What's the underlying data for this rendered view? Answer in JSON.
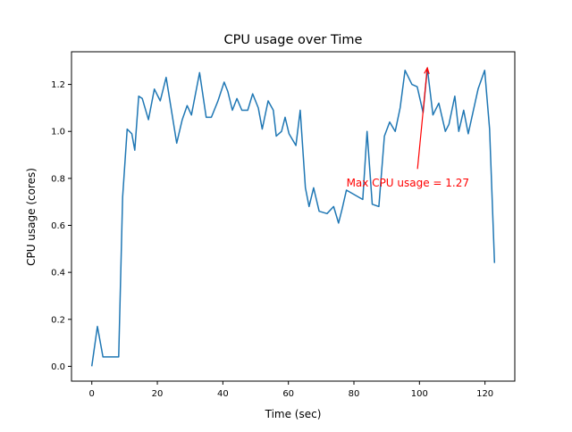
{
  "chart_data": {
    "type": "line",
    "title": "CPU usage over Time",
    "xlabel": "Time (sec)",
    "ylabel": "CPU usage (cores)",
    "xlim": [
      -6.2,
      129.1
    ],
    "ylim": [
      -0.063,
      1.339
    ],
    "xticks": [
      0,
      20,
      40,
      60,
      80,
      100,
      120
    ],
    "xtick_labels": [
      "0",
      "20",
      "40",
      "60",
      "80",
      "100",
      "120"
    ],
    "yticks": [
      0.0,
      0.2,
      0.4,
      0.6,
      0.8,
      1.0,
      1.2
    ],
    "ytick_labels": [
      "0.0",
      "0.2",
      "0.4",
      "0.6",
      "0.8",
      "1.0",
      "1.2"
    ],
    "grid": false,
    "series": [
      {
        "name": "CPU usage",
        "color": "#1f77b4",
        "x": [
          0,
          1.7,
          3.4,
          4.7,
          6.1,
          8.2,
          9.4,
          10.8,
          12.2,
          13.1,
          14.3,
          15.4,
          17.3,
          19.1,
          20.9,
          22.7,
          25.9,
          27.6,
          29.1,
          30.4,
          32.9,
          34.9,
          36.5,
          38.5,
          40.4,
          41.5,
          42.9,
          44.3,
          45.8,
          47.6,
          49.1,
          50.8,
          52.0,
          53.8,
          55.4,
          56.3,
          57.9,
          59.0,
          60.2,
          62.3,
          63.6,
          65.2,
          66.3,
          67.7,
          69.4,
          71.8,
          73.8,
          75.3,
          76.4,
          77.7,
          82.7,
          84.0,
          85.6,
          87.6,
          89.3,
          90.9,
          92.6,
          94.1,
          95.6,
          97.7,
          99.3,
          101.1,
          102.4,
          104.1,
          105.9,
          107.9,
          109.0,
          110.8,
          112.0,
          113.5,
          114.9,
          117.9,
          119.9,
          121.4,
          122.9
        ],
        "y": [
          0,
          0.17,
          0.04,
          0.04,
          0.04,
          0.04,
          0.72,
          1.01,
          0.99,
          0.92,
          1.15,
          1.14,
          1.05,
          1.18,
          1.13,
          1.23,
          0.95,
          1.05,
          1.11,
          1.07,
          1.25,
          1.06,
          1.06,
          1.13,
          1.21,
          1.17,
          1.09,
          1.14,
          1.09,
          1.09,
          1.16,
          1.1,
          1.01,
          1.13,
          1.09,
          0.98,
          1.0,
          1.06,
          0.99,
          0.94,
          1.09,
          0.76,
          0.68,
          0.76,
          0.66,
          0.65,
          0.68,
          0.61,
          0.67,
          0.75,
          0.71,
          1.0,
          0.69,
          0.68,
          0.98,
          1.04,
          1.0,
          1.1,
          1.26,
          1.2,
          1.19,
          1.08,
          1.27,
          1.07,
          1.12,
          1.0,
          1.03,
          1.15,
          1.0,
          1.09,
          0.99,
          1.18,
          1.26,
          1.01,
          0.44
        ]
      }
    ],
    "annotation": {
      "text": "Max CPU usage = 1.27",
      "color": "#ff0000",
      "text_xy": [
        77.7,
        0.78
      ],
      "arrow_from": [
        99.4,
        0.84
      ],
      "arrow_to": [
        102.4,
        1.27
      ]
    }
  }
}
